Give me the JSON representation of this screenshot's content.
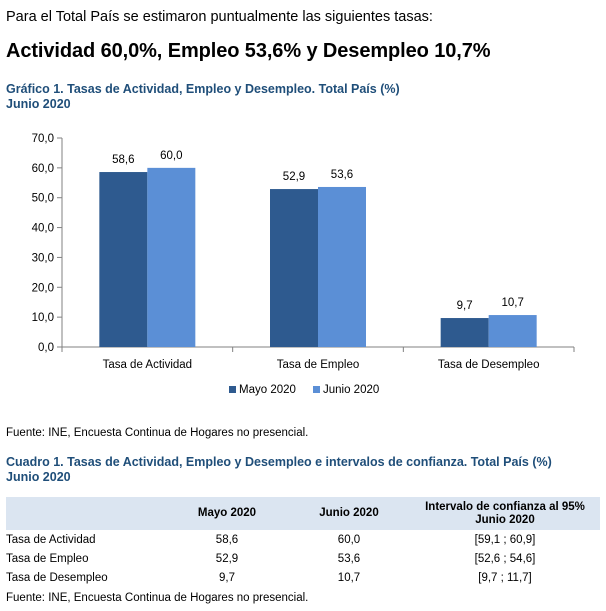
{
  "intro": "Para el Total País se estimaron puntualmente las siguientes tasas:",
  "headline": "Actividad 60,0%, Empleo 53,6% y Desempleo 10,7%",
  "chart_title_line1": "Gráfico 1. Tasas de Actividad, Empleo y Desempleo. Total País (%)",
  "chart_title_line2": "Junio 2020",
  "chart_data": {
    "type": "bar",
    "title": "Gráfico 1. Tasas de Actividad, Empleo y Desempleo. Total País (%) Junio 2020",
    "categories": [
      "Tasa de Actividad",
      "Tasa de Empleo",
      "Tasa de Desempleo"
    ],
    "series": [
      {
        "name": "Mayo 2020",
        "values": [
          58.6,
          52.9,
          9.7
        ],
        "labels": [
          "58,6",
          "52,9",
          "9,7"
        ],
        "color": "#2e5a8f"
      },
      {
        "name": "Junio 2020",
        "values": [
          60.0,
          53.6,
          10.7
        ],
        "labels": [
          "60,0",
          "53,6",
          "10,7"
        ],
        "color": "#5b8fd6"
      }
    ],
    "ylim": [
      0,
      70
    ],
    "yticks": [
      "0,0",
      "10,0",
      "20,0",
      "30,0",
      "40,0",
      "50,0",
      "60,0",
      "70,0"
    ],
    "xlabel": "",
    "ylabel": "",
    "legend": "bottom-center"
  },
  "source_1": "Fuente: INE, Encuesta Continua de Hogares no presencial.",
  "table_title_line1": "Cuadro 1. Tasas de Actividad, Empleo y Desempleo e intervalos de confianza. Total País (%)",
  "table_title_line2": "Junio 2020",
  "table": {
    "headers": [
      "",
      "Mayo 2020",
      "Junio 2020",
      "Intervalo de confianza al 95%",
      "Junio 2020"
    ],
    "rows": [
      {
        "label": "Tasa de Actividad",
        "mayo": "58,6",
        "junio": "60,0",
        "intervalo": "[59,1 ; 60,9]"
      },
      {
        "label": "Tasa de Empleo",
        "mayo": "52,9",
        "junio": "53,6",
        "intervalo": "[52,6 ; 54,6]"
      },
      {
        "label": "Tasa de Desempleo",
        "mayo": "9,7",
        "junio": "10,7",
        "intervalo": "[9,7 ; 11,7]"
      }
    ]
  },
  "source_2": "Fuente: INE, Encuesta Continua de Hogares no presencial."
}
